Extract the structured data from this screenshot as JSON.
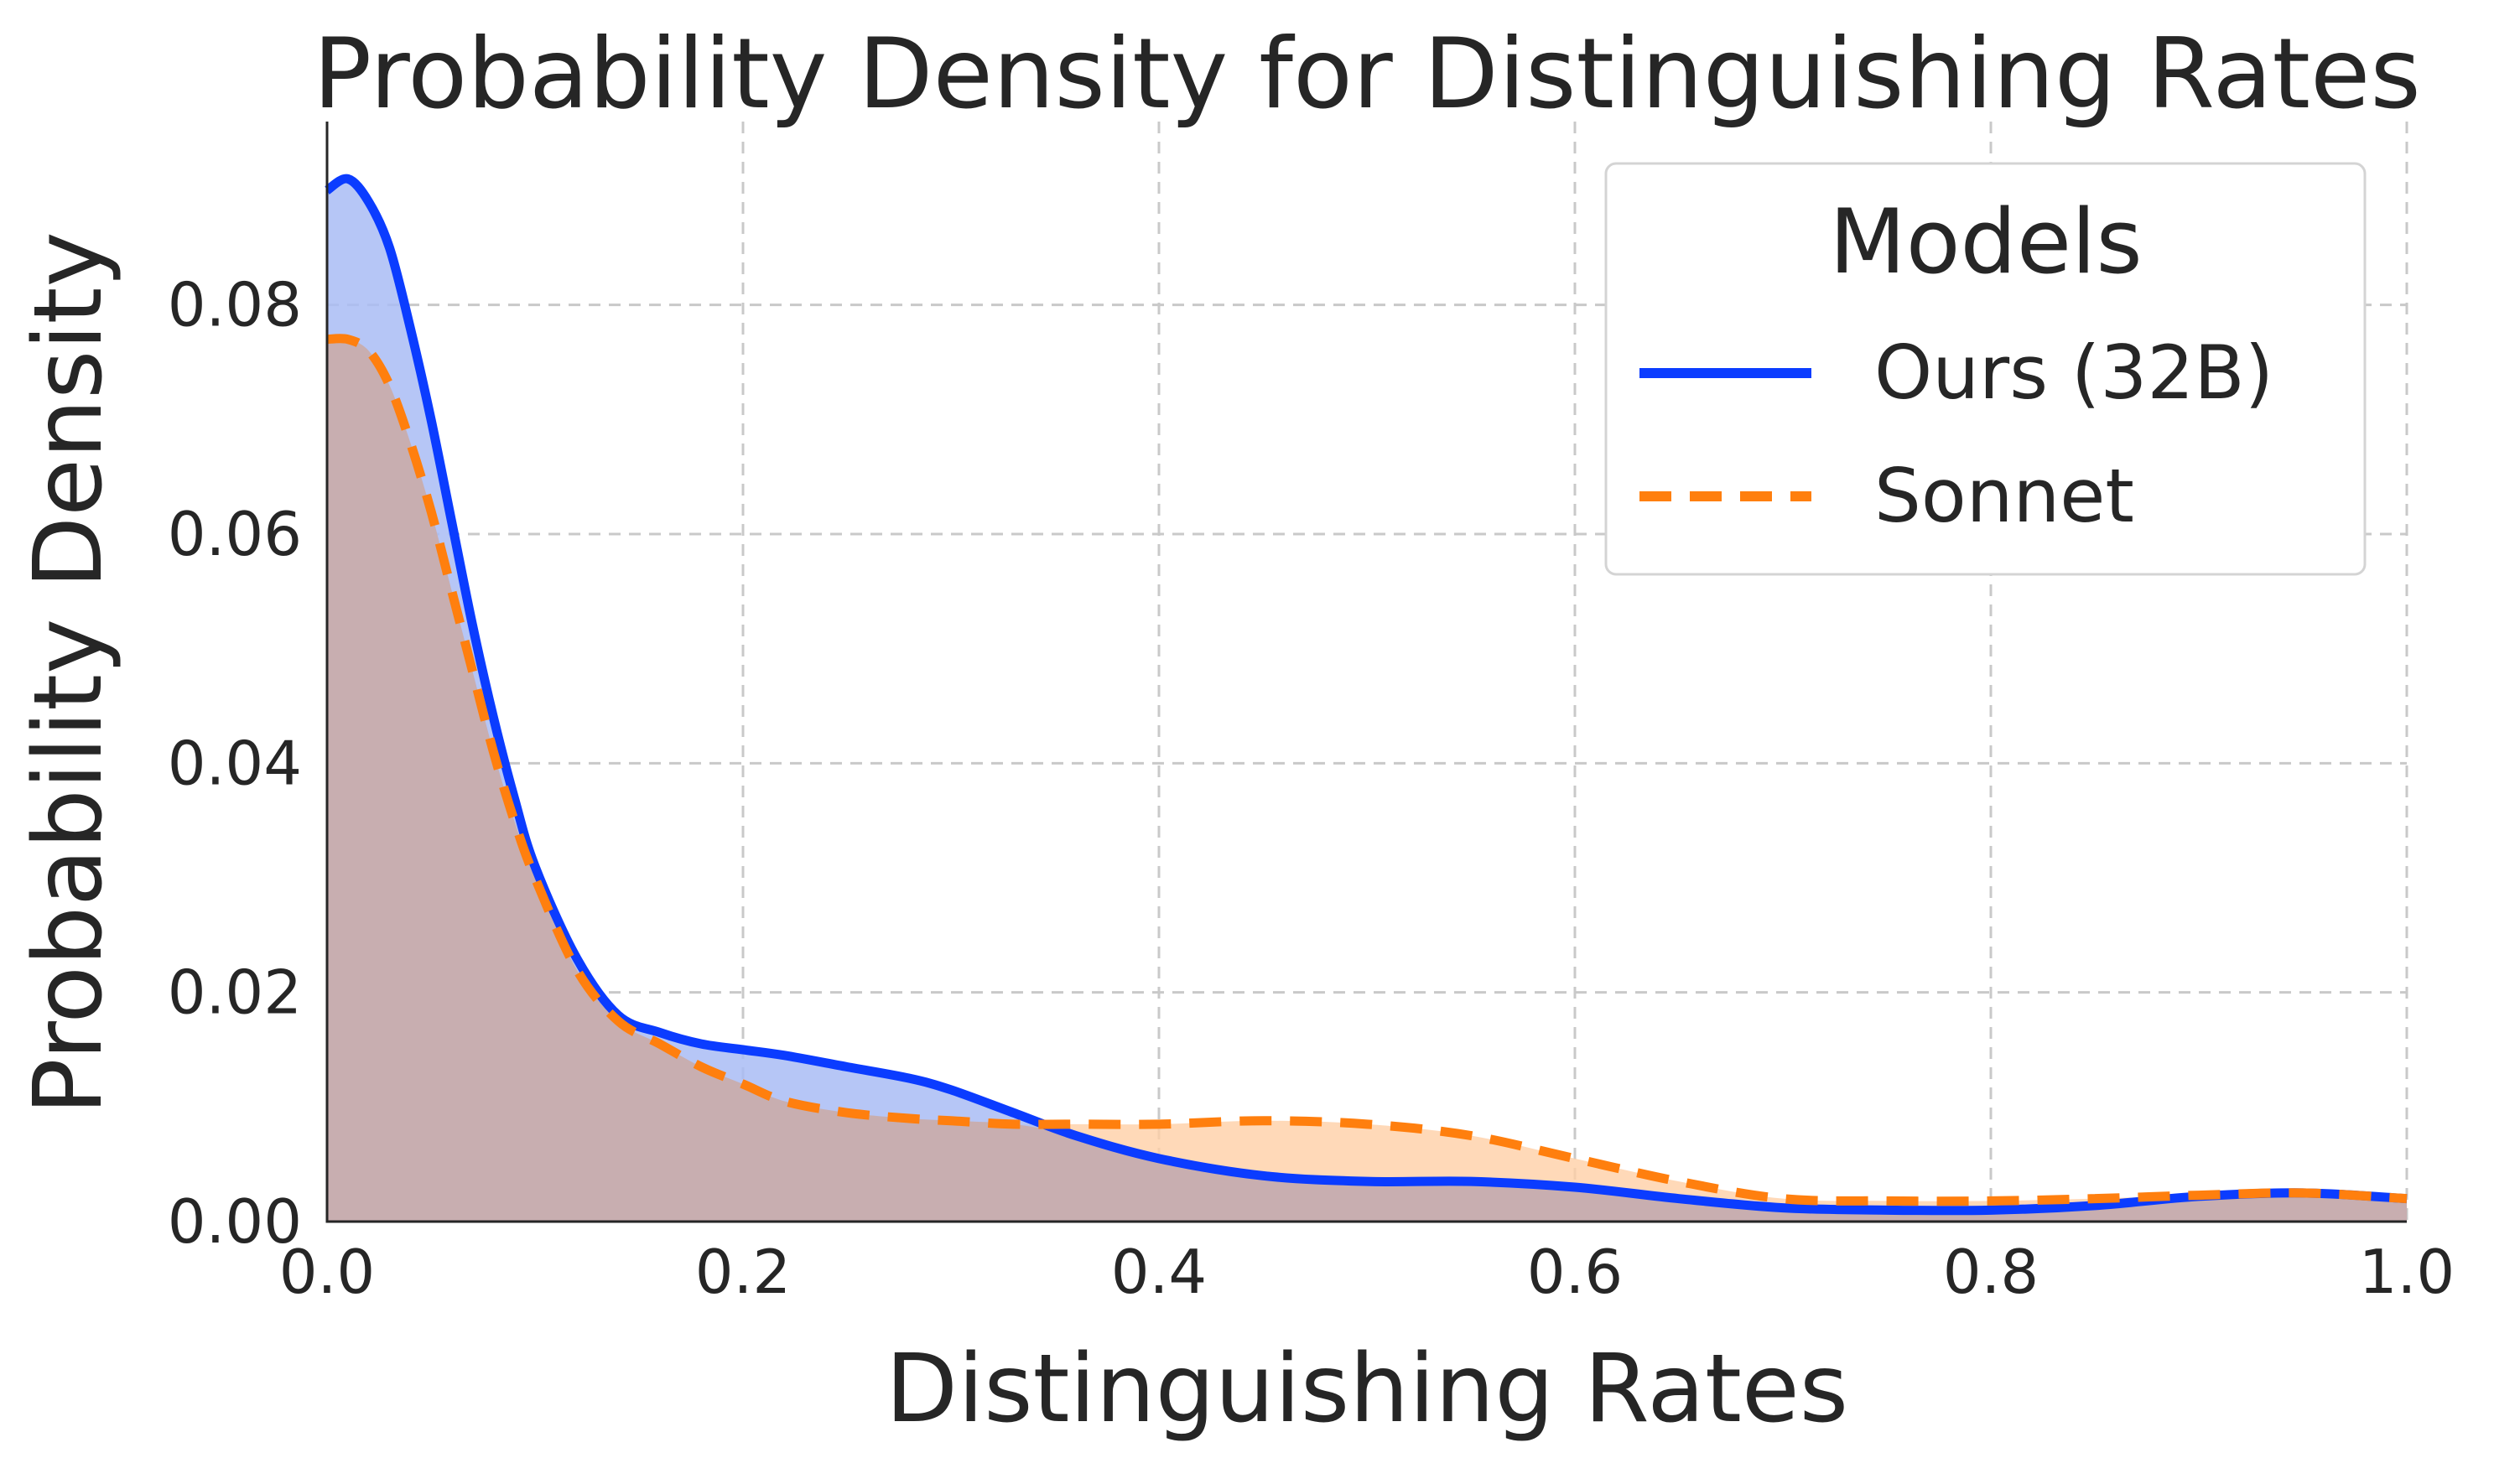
{
  "chart_data": {
    "type": "area",
    "title": "Probability Density for Distinguishing Rates",
    "xlabel": "Distinguishing Rates",
    "ylabel": "Probability Density",
    "xlim": [
      0,
      1
    ],
    "ylim": [
      0,
      0.096
    ],
    "xticks": [
      "0.0",
      "0.2",
      "0.4",
      "0.6",
      "0.8",
      "1.0"
    ],
    "yticks": [
      "0.00",
      "0.02",
      "0.04",
      "0.06",
      "0.08"
    ],
    "grid": true,
    "legend": {
      "title": "Models",
      "placement": "top-right"
    },
    "series": [
      {
        "name": "Ours (32B)",
        "color": "#0b3cff",
        "fill": "#a9bcf5",
        "line_style": "solid",
        "x": [
          0.0,
          0.01,
          0.02,
          0.03,
          0.04,
          0.05,
          0.06,
          0.07,
          0.08,
          0.09,
          0.1,
          0.12,
          0.14,
          0.16,
          0.18,
          0.2,
          0.22,
          0.25,
          0.28,
          0.3,
          0.33,
          0.36,
          0.4,
          0.45,
          0.5,
          0.55,
          0.6,
          0.65,
          0.7,
          0.75,
          0.8,
          0.85,
          0.9,
          0.95,
          1.0
        ],
        "y": [
          0.09,
          0.091,
          0.089,
          0.085,
          0.078,
          0.07,
          0.061,
          0.052,
          0.044,
          0.037,
          0.031,
          0.023,
          0.018,
          0.0165,
          0.0155,
          0.015,
          0.0145,
          0.0135,
          0.0125,
          0.0115,
          0.0095,
          0.0075,
          0.0055,
          0.004,
          0.0035,
          0.0035,
          0.003,
          0.002,
          0.0012,
          0.001,
          0.001,
          0.0014,
          0.0022,
          0.0025,
          0.002
        ]
      },
      {
        "name": "Sonnet",
        "color": "#ff7f0e",
        "fill": "#ffd0a6",
        "line_style": "dashed",
        "x": [
          0.0,
          0.01,
          0.02,
          0.03,
          0.04,
          0.05,
          0.06,
          0.07,
          0.08,
          0.09,
          0.1,
          0.12,
          0.14,
          0.16,
          0.18,
          0.2,
          0.22,
          0.25,
          0.28,
          0.3,
          0.33,
          0.36,
          0.4,
          0.45,
          0.5,
          0.55,
          0.6,
          0.65,
          0.7,
          0.75,
          0.8,
          0.85,
          0.9,
          0.95,
          1.0
        ],
        "y": [
          0.077,
          0.077,
          0.076,
          0.073,
          0.068,
          0.062,
          0.055,
          0.048,
          0.041,
          0.035,
          0.03,
          0.022,
          0.0175,
          0.0155,
          0.0135,
          0.012,
          0.0105,
          0.0095,
          0.009,
          0.0088,
          0.0085,
          0.0085,
          0.0085,
          0.0088,
          0.0085,
          0.0075,
          0.0055,
          0.0035,
          0.002,
          0.0018,
          0.0018,
          0.002,
          0.0023,
          0.0025,
          0.002
        ]
      }
    ]
  }
}
